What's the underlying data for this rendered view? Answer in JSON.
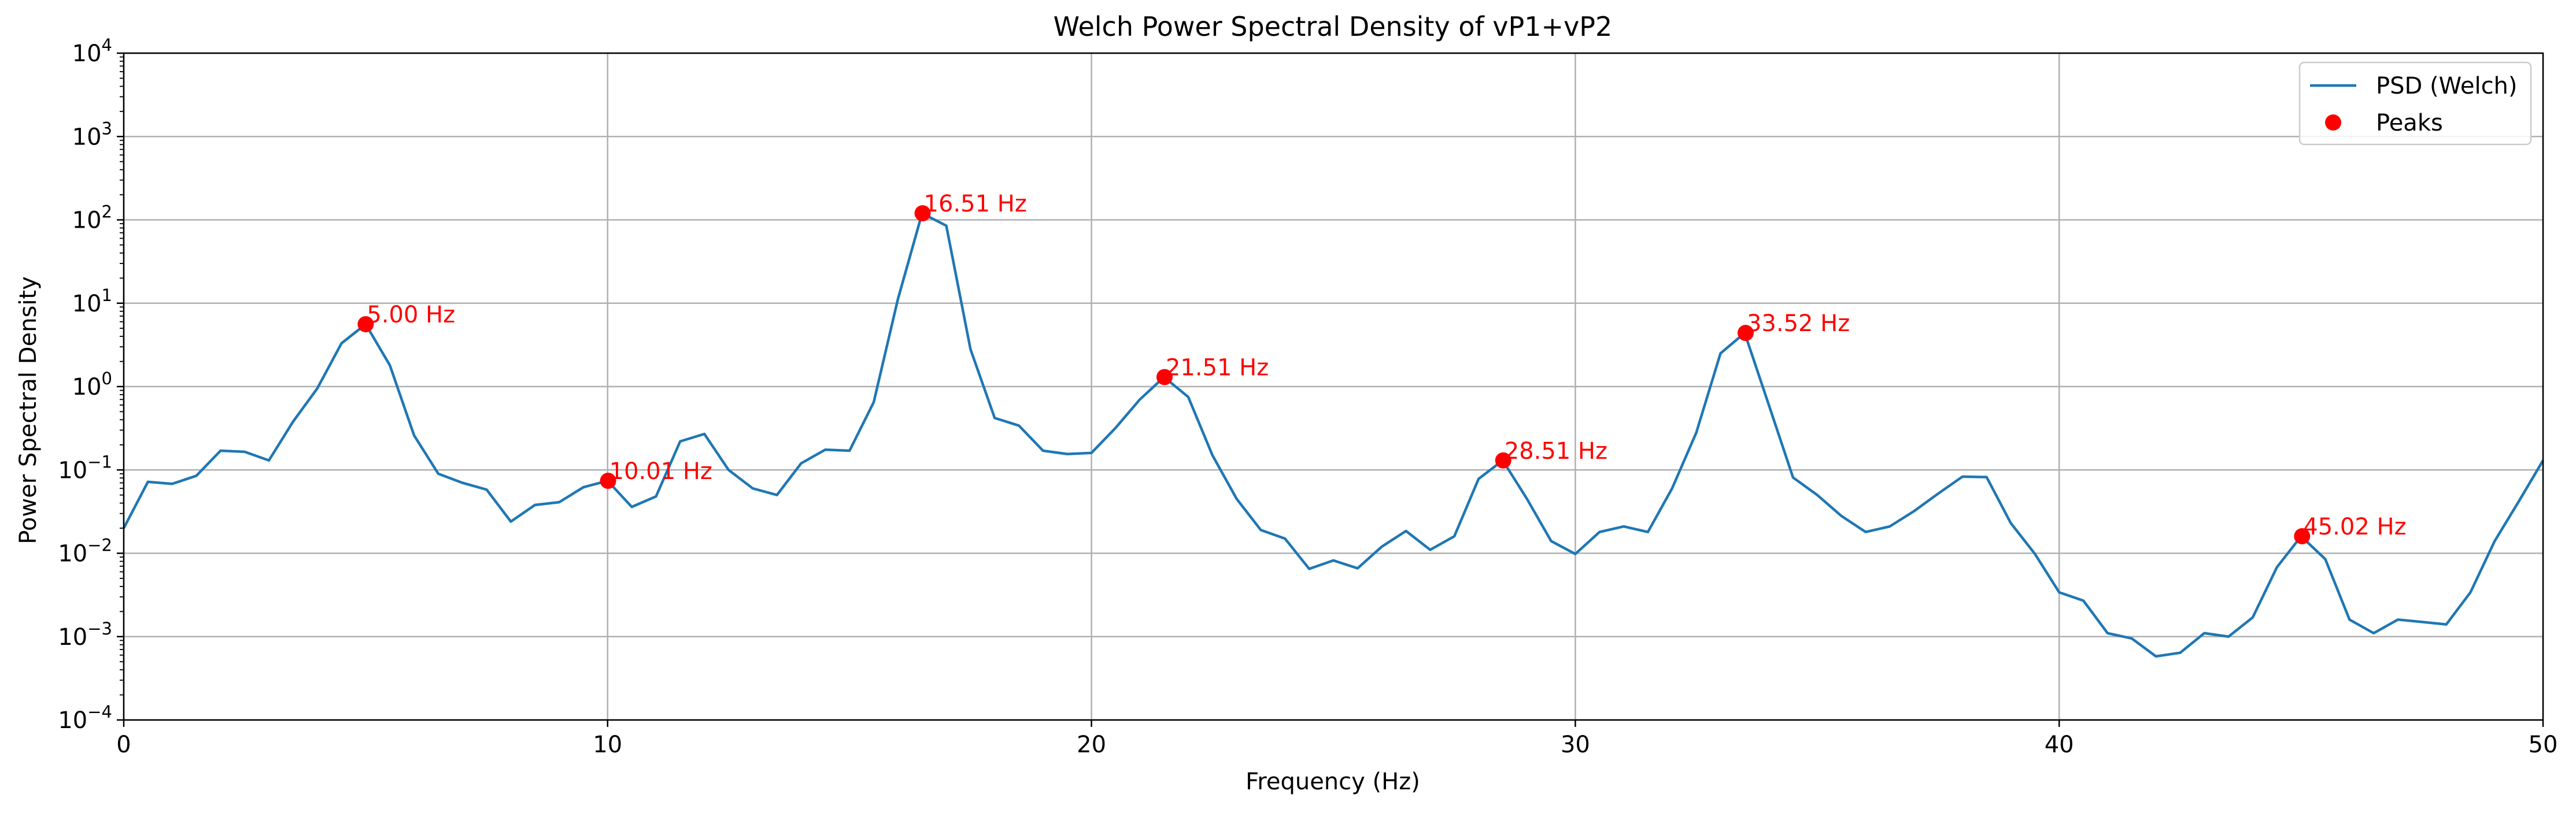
{
  "chart_data": {
    "type": "line",
    "title": "Welch Power Spectral Density of vP1+vP2",
    "xlabel": "Frequency (Hz)",
    "ylabel": "Power Spectral Density",
    "xlim": [
      0,
      50
    ],
    "ylim": [
      0.0001,
      10000
    ],
    "yscale": "log",
    "grid": true,
    "legend_position": "top-right",
    "x_ticks": [
      "0",
      "10",
      "20",
      "30",
      "40",
      "50"
    ],
    "y_ticks": [
      {
        "base": "10",
        "exp": "−4",
        "value": 0.0001
      },
      {
        "base": "10",
        "exp": "−3",
        "value": 0.001
      },
      {
        "base": "10",
        "exp": "−2",
        "value": 0.01
      },
      {
        "base": "10",
        "exp": "−1",
        "value": 0.1
      },
      {
        "base": "10",
        "exp": "0",
        "value": 1
      },
      {
        "base": "10",
        "exp": "1",
        "value": 10
      },
      {
        "base": "10",
        "exp": "2",
        "value": 100
      },
      {
        "base": "10",
        "exp": "3",
        "value": 1000
      },
      {
        "base": "10",
        "exp": "4",
        "value": 10000
      }
    ],
    "series": [
      {
        "name": "PSD (Welch)",
        "color": "#1f77b4",
        "x": [
          0,
          0.5,
          1,
          1.5,
          2,
          2.5,
          3,
          3.5,
          4,
          4.5,
          5,
          5.5,
          6,
          6.5,
          7,
          7.5,
          8,
          8.5,
          9,
          9.5,
          10,
          10.5,
          11,
          11.5,
          12,
          12.5,
          13,
          13.5,
          14,
          14.5,
          15,
          15.5,
          16,
          16.5,
          17,
          17.5,
          18,
          18.5,
          19,
          19.5,
          20,
          20.5,
          21,
          21.5,
          22,
          22.5,
          23,
          23.5,
          24,
          24.5,
          25,
          25.5,
          26,
          26.5,
          27,
          27.5,
          28,
          28.5,
          29,
          29.5,
          30,
          30.5,
          31,
          31.5,
          32,
          32.5,
          33,
          33.5,
          34,
          34.5,
          35,
          35.5,
          36,
          36.5,
          37,
          37.5,
          38,
          38.5,
          39,
          39.5,
          40,
          40.5,
          41,
          41.5,
          42,
          42.5,
          43,
          43.5,
          44,
          44.5,
          45,
          45.5,
          46,
          46.5,
          47,
          47.5,
          48,
          48.5,
          49,
          49.5,
          50
        ],
        "y": [
          0.02,
          0.072,
          0.068,
          0.085,
          0.17,
          0.165,
          0.13,
          0.38,
          0.95,
          3.3,
          5.6,
          1.8,
          0.26,
          0.09,
          0.07,
          0.058,
          0.024,
          0.038,
          0.041,
          0.062,
          0.074,
          0.036,
          0.048,
          0.22,
          0.27,
          0.1,
          0.06,
          0.05,
          0.12,
          0.175,
          0.17,
          0.65,
          11.2,
          120,
          85,
          2.8,
          0.42,
          0.34,
          0.17,
          0.155,
          0.16,
          0.32,
          0.7,
          1.3,
          0.75,
          0.15,
          0.045,
          0.019,
          0.015,
          0.0065,
          0.0082,
          0.0066,
          0.012,
          0.0185,
          0.011,
          0.016,
          0.078,
          0.13,
          0.045,
          0.014,
          0.0098,
          0.018,
          0.021,
          0.018,
          0.06,
          0.28,
          2.5,
          4.4,
          0.6,
          0.081,
          0.05,
          0.028,
          0.018,
          0.021,
          0.032,
          0.052,
          0.083,
          0.082,
          0.023,
          0.0098,
          0.0034,
          0.0027,
          0.0011,
          0.00095,
          0.00058,
          0.00064,
          0.0011,
          0.001,
          0.0017,
          0.0068,
          0.016,
          0.0085,
          0.0016,
          0.0011,
          0.0016,
          0.0015,
          0.0014,
          0.0034,
          0.014,
          0.042,
          0.13
        ]
      },
      {
        "name": "Peaks",
        "color": "#ff0000",
        "points": [
          {
            "x": 5.0,
            "y": 5.6,
            "label": "5.00 Hz"
          },
          {
            "x": 10.01,
            "y": 0.074,
            "label": "10.01 Hz"
          },
          {
            "x": 16.51,
            "y": 120,
            "label": "16.51 Hz"
          },
          {
            "x": 21.51,
            "y": 1.3,
            "label": "21.51 Hz"
          },
          {
            "x": 28.51,
            "y": 0.13,
            "label": "28.51 Hz"
          },
          {
            "x": 33.52,
            "y": 4.4,
            "label": "33.52 Hz"
          },
          {
            "x": 45.02,
            "y": 0.016,
            "label": "45.02 Hz"
          }
        ]
      }
    ]
  }
}
